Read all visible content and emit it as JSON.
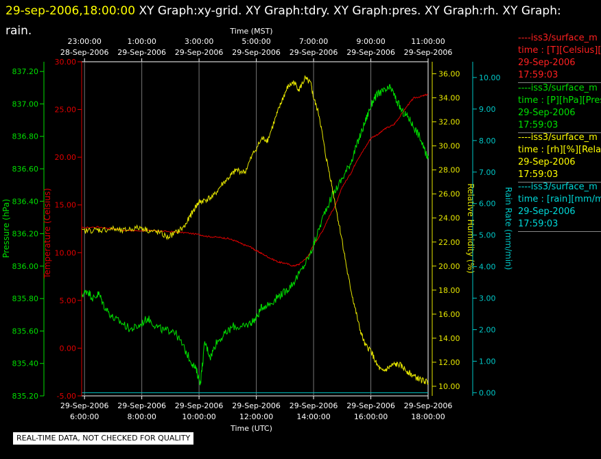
{
  "header": {
    "timestamp": "29-sep-2006,18:00:00",
    "graphs": "XY Graph:xy-grid.  XY Graph:tdry.  XY Graph:pres.  XY Graph:rh.  XY Graph:",
    "continuation": "rain."
  },
  "qc_note": "REAL-TIME DATA, NOT CHECKED FOR QUALITY",
  "legend": [
    {
      "series": "----iss3/surface_m",
      "units": "time : [T][Celsius][T",
      "date": "29-Sep-2006",
      "time": "17:59:03",
      "color": "#ff2020"
    },
    {
      "series": "----iss3/surface_m",
      "units": "time : [P][hPa][Pres",
      "date": "29-Sep-2006",
      "time": "17:59:03",
      "color": "#00e000"
    },
    {
      "series": "----iss3/surface_m",
      "units": "time : [rh][%][Relativ",
      "date": "29-Sep-2006",
      "time": "17:59:03",
      "color": "#ffff00"
    },
    {
      "series": "----iss3/surface_m",
      "units": "time : [rain][mm/min",
      "date": "29-Sep-2006",
      "time": "17:59:03",
      "color": "#00d8d8"
    }
  ],
  "chart_data": {
    "type": "line",
    "x_top": {
      "label": "Time (MST)",
      "ticks": [
        {
          "time": "23:00:00",
          "date": "28-Sep-2006"
        },
        {
          "time": "1:00:00",
          "date": "29-Sep-2006"
        },
        {
          "time": "3:00:00",
          "date": "29-Sep-2006"
        },
        {
          "time": "5:00:00",
          "date": "29-Sep-2006"
        },
        {
          "time": "7:00:00",
          "date": "29-Sep-2006"
        },
        {
          "time": "9:00:00",
          "date": "29-Sep-2006"
        },
        {
          "time": "11:00:00",
          "date": "29-Sep-2006"
        }
      ]
    },
    "x_bottom": {
      "label": "Time (UTC)",
      "ticks": [
        {
          "date": "29-Sep-2006",
          "time": "6:00:00"
        },
        {
          "date": "29-Sep-2006",
          "time": "8:00:00"
        },
        {
          "date": "29-Sep-2006",
          "time": "10:00:00"
        },
        {
          "date": "29-Sep-2006",
          "time": "12:00:00"
        },
        {
          "date": "29-Sep-2006",
          "time": "14:00:00"
        },
        {
          "date": "29-Sep-2006",
          "time": "16:00:00"
        },
        {
          "date": "29-Sep-2006",
          "time": "18:00:00"
        }
      ],
      "range_utc_hours": [
        5.9,
        18.0
      ]
    },
    "grid": true,
    "legend_position": "right",
    "axes": {
      "pressure": {
        "label": "Pressure (hPa)",
        "color": "#00e000",
        "range": [
          835.2,
          837.26
        ],
        "ticks": [
          "837.20",
          "837.00",
          "836.80",
          "836.60",
          "836.40",
          "836.20",
          "836.00",
          "835.80",
          "835.60",
          "835.40",
          "835.20"
        ]
      },
      "temperature": {
        "label": "Temperature (Celsius)",
        "color": "#e00000",
        "range": [
          -5.0,
          30.0
        ],
        "ticks": [
          "30.00",
          "25.00",
          "20.00",
          "15.00",
          "10.00",
          "5.00",
          "0.00",
          "-5.00"
        ]
      },
      "rh": {
        "label": "Relative Humidity (%)",
        "color": "#e8e800",
        "range": [
          9.2,
          37.0
        ],
        "ticks": [
          "36.00",
          "34.00",
          "32.00",
          "30.00",
          "28.00",
          "26.00",
          "24.00",
          "22.00",
          "20.00",
          "18.00",
          "16.00",
          "14.00",
          "12.00",
          "10.00"
        ]
      },
      "rain": {
        "label": "Rain Rate (mm/min)",
        "color": "#00c8c8",
        "range": [
          -0.1,
          10.5
        ],
        "ticks": [
          "10.00",
          "9.00",
          "8.00",
          "7.00",
          "6.00",
          "5.00",
          "4.00",
          "3.00",
          "2.00",
          "1.00",
          "0.00"
        ]
      }
    },
    "series": [
      {
        "name": "Temperature",
        "axis": "temperature",
        "color": "#e00000",
        "x": [
          5.9,
          6.5,
          7.0,
          7.5,
          8.0,
          8.5,
          9.0,
          9.5,
          10.0,
          10.3,
          10.7,
          11.0,
          11.3,
          11.5,
          11.8,
          12.0,
          12.2,
          12.5,
          12.8,
          13.0,
          13.3,
          13.5,
          13.8,
          14.0,
          14.3,
          14.5,
          14.8,
          15.0,
          15.3,
          15.5,
          15.8,
          16.0,
          16.3,
          16.5,
          16.8,
          17.0,
          17.3,
          17.5,
          17.8,
          18.0
        ],
        "y": [
          12.6,
          12.7,
          12.5,
          12.3,
          12.3,
          12.3,
          12.2,
          12.1,
          11.9,
          11.7,
          11.6,
          11.5,
          11.2,
          10.9,
          10.6,
          10.2,
          9.9,
          9.4,
          9.0,
          8.9,
          8.6,
          8.8,
          9.6,
          10.8,
          12.2,
          13.5,
          15.2,
          16.9,
          18.3,
          19.6,
          21.0,
          22.0,
          22.5,
          23.0,
          23.4,
          24.2,
          25.5,
          26.2,
          26.4,
          26.6
        ]
      },
      {
        "name": "Pressure",
        "axis": "pressure",
        "color": "#00e000",
        "x": [
          5.9,
          6.1,
          6.3,
          6.5,
          6.7,
          7.0,
          7.3,
          7.6,
          7.9,
          8.2,
          8.5,
          8.8,
          9.1,
          9.4,
          9.7,
          9.9,
          10.05,
          10.2,
          10.4,
          10.6,
          10.9,
          11.2,
          11.5,
          11.8,
          12.0,
          12.2,
          12.5,
          12.8,
          13.0,
          13.3,
          13.6,
          13.9,
          14.1,
          14.4,
          14.7,
          15.0,
          15.3,
          15.5,
          15.7,
          15.9,
          16.1,
          16.3,
          16.5,
          16.7,
          16.9,
          17.1,
          17.3,
          17.5,
          17.7,
          17.9,
          18.0
        ],
        "y": [
          835.82,
          835.85,
          835.8,
          835.83,
          835.75,
          835.68,
          835.65,
          835.61,
          835.63,
          835.68,
          835.63,
          835.6,
          835.61,
          835.52,
          835.42,
          835.36,
          835.28,
          835.53,
          835.44,
          835.53,
          835.58,
          835.63,
          835.62,
          835.65,
          835.68,
          835.75,
          835.77,
          835.82,
          835.84,
          835.9,
          835.98,
          836.08,
          836.18,
          836.34,
          836.45,
          836.54,
          836.64,
          836.74,
          836.84,
          836.94,
          837.03,
          837.07,
          837.08,
          837.1,
          837.02,
          836.95,
          836.92,
          836.86,
          836.8,
          836.7,
          836.68
        ]
      },
      {
        "name": "Relative Humidity",
        "axis": "rh",
        "color": "#e8e800",
        "x": [
          5.9,
          6.3,
          6.6,
          7.0,
          7.3,
          7.6,
          8.0,
          8.3,
          8.6,
          8.9,
          9.2,
          9.5,
          9.7,
          9.9,
          10.0,
          10.2,
          10.5,
          10.8,
          11.1,
          11.3,
          11.6,
          11.9,
          12.2,
          12.4,
          12.7,
          12.9,
          13.1,
          13.3,
          13.5,
          13.7,
          13.9,
          14.0,
          14.2,
          14.4,
          14.6,
          14.8,
          15.0,
          15.2,
          15.4,
          15.6,
          15.8,
          16.0,
          16.2,
          16.4,
          16.6,
          16.8,
          17.0,
          17.2,
          17.4,
          17.6,
          17.8,
          18.0
        ],
        "y": [
          22.9,
          23.0,
          23.0,
          23.1,
          22.9,
          23.1,
          23.2,
          22.9,
          22.8,
          22.4,
          22.8,
          23.3,
          24.2,
          25.0,
          25.3,
          25.5,
          25.8,
          26.8,
          27.5,
          28.0,
          27.8,
          29.4,
          30.6,
          30.5,
          32.5,
          33.8,
          34.9,
          35.3,
          34.7,
          35.6,
          35.2,
          34.0,
          32.5,
          29.5,
          27.2,
          24.6,
          22.1,
          19.2,
          17.0,
          14.9,
          13.4,
          13.0,
          11.8,
          11.2,
          11.5,
          11.8,
          11.8,
          11.4,
          11.0,
          10.7,
          10.5,
          10.3
        ]
      },
      {
        "name": "Rain Rate",
        "axis": "rain",
        "color": "#00c8c8",
        "x": [
          5.9,
          18.0
        ],
        "y": [
          0.0,
          0.0
        ]
      }
    ]
  }
}
